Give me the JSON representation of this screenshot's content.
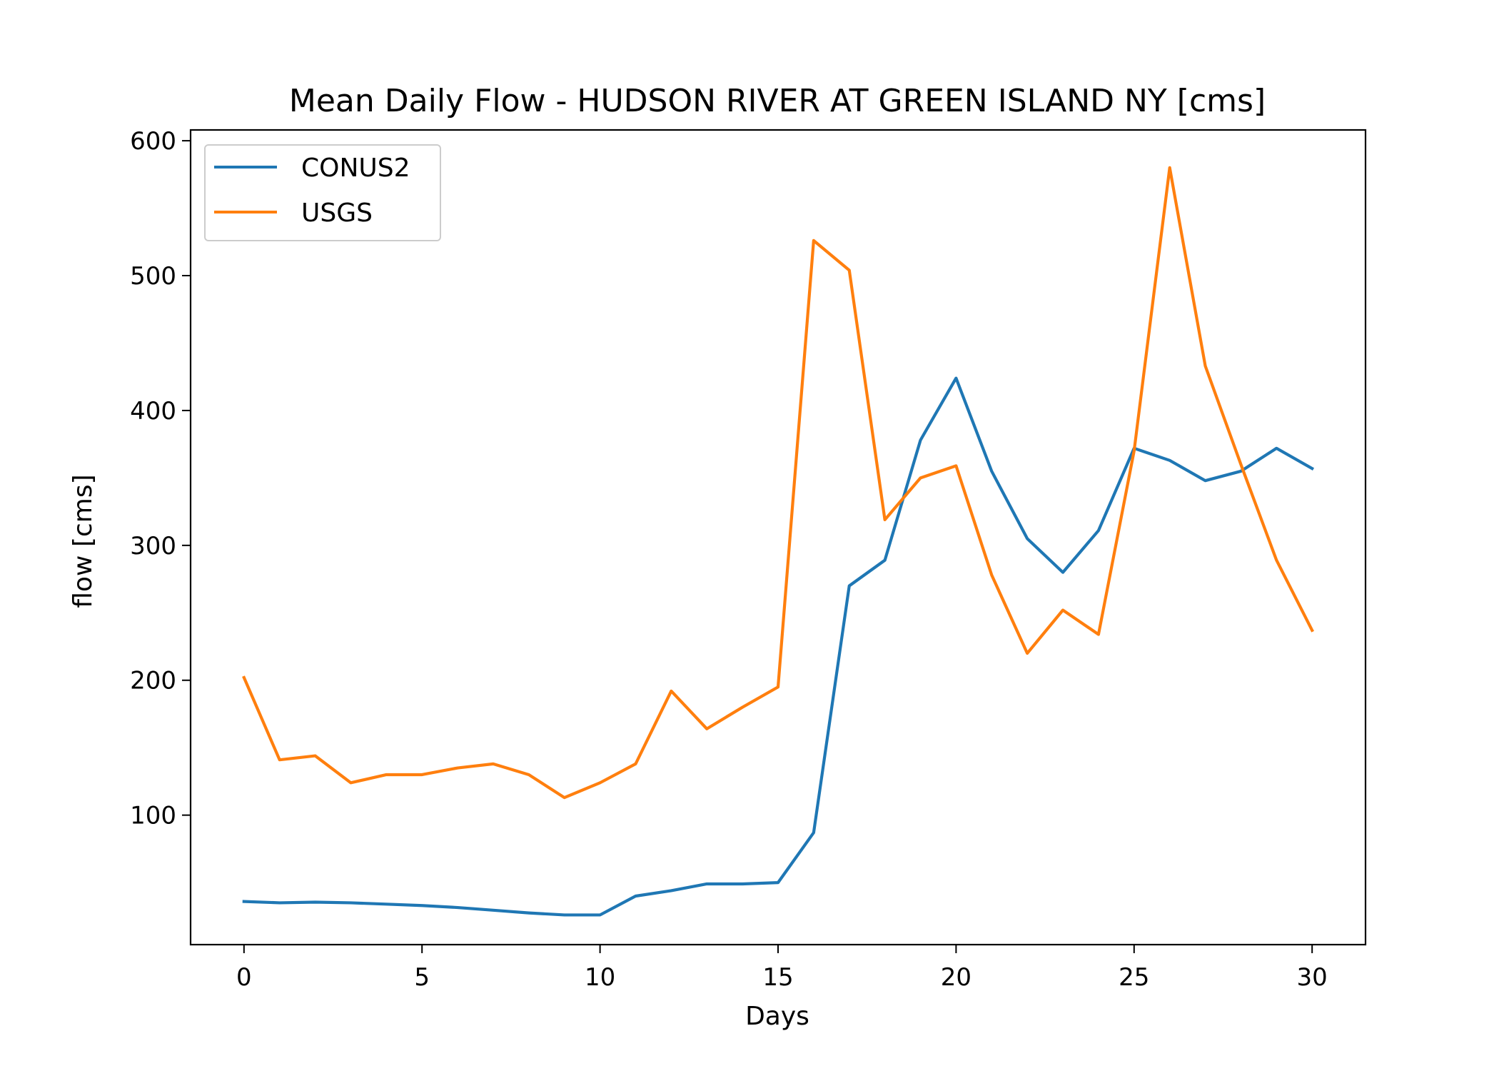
{
  "colors": {
    "CONUS2": "#1f77b4",
    "USGS": "#ff7f0e",
    "background": "#ffffff",
    "axes": "#000000",
    "legend_border": "#cccccc"
  },
  "chart_data": {
    "type": "line",
    "title": "Mean Daily Flow - HUDSON RIVER AT GREEN ISLAND NY [cms]",
    "xlabel": "Days",
    "ylabel": "flow [cms]",
    "xlim": [
      -1.5,
      31.5
    ],
    "ylim": [
      4,
      608
    ],
    "xticks": [
      0,
      5,
      10,
      15,
      20,
      25,
      30
    ],
    "yticks": [
      100,
      200,
      300,
      400,
      500,
      600
    ],
    "xtick_labels": [
      "0",
      "5",
      "10",
      "15",
      "20",
      "25",
      "30"
    ],
    "ytick_labels": [
      "100",
      "200",
      "300",
      "400",
      "500",
      "600"
    ],
    "grid": false,
    "legend_position": "upper left",
    "x": [
      0,
      1,
      2,
      3,
      4,
      5,
      6,
      7,
      8,
      9,
      10,
      11,
      12,
      13,
      14,
      15,
      16,
      17,
      18,
      19,
      20,
      21,
      22,
      23,
      24,
      25,
      26,
      27,
      28,
      29,
      30
    ],
    "series": [
      {
        "name": "CONUS2",
        "color": "#1f77b4",
        "values": [
          36,
          35,
          35.5,
          35,
          34,
          33,
          31.5,
          29.5,
          27.5,
          26,
          26,
          40,
          44,
          49,
          49,
          50,
          87,
          270,
          289,
          378,
          424,
          355,
          305,
          280,
          311,
          372,
          363,
          348,
          355,
          372,
          357
        ]
      },
      {
        "name": "USGS",
        "color": "#ff7f0e",
        "values": [
          202,
          141,
          144,
          124,
          130,
          130,
          135,
          138,
          130,
          113,
          124,
          138,
          192,
          164,
          180,
          195,
          526,
          504,
          319,
          350,
          359,
          278,
          220,
          252,
          234,
          370,
          580,
          433,
          360,
          289,
          237
        ]
      }
    ]
  }
}
